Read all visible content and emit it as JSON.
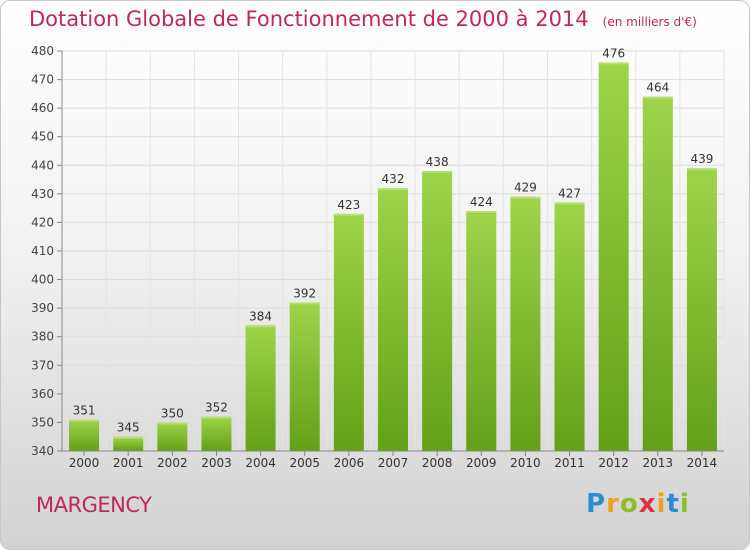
{
  "chart_data": {
    "type": "bar",
    "title": "Dotation Globale de Fonctionnement de 2000 à 2014",
    "subtitle": "(en milliers d'€)",
    "categories": [
      "2000",
      "2001",
      "2002",
      "2003",
      "2004",
      "2005",
      "2006",
      "2007",
      "2008",
      "2009",
      "2010",
      "2011",
      "2012",
      "2013",
      "2014"
    ],
    "values": [
      351,
      345,
      350,
      352,
      384,
      392,
      423,
      432,
      438,
      424,
      429,
      427,
      476,
      464,
      439
    ],
    "ylim": [
      340,
      480
    ],
    "yticks": [
      340,
      350,
      360,
      370,
      380,
      390,
      400,
      410,
      420,
      430,
      440,
      450,
      460,
      470,
      480
    ],
    "grid": true,
    "bar_color": "#7cba25",
    "title_color": "#c0285a"
  },
  "footer": {
    "commune": "MARGENCY",
    "logo_text": "Proxiti"
  }
}
